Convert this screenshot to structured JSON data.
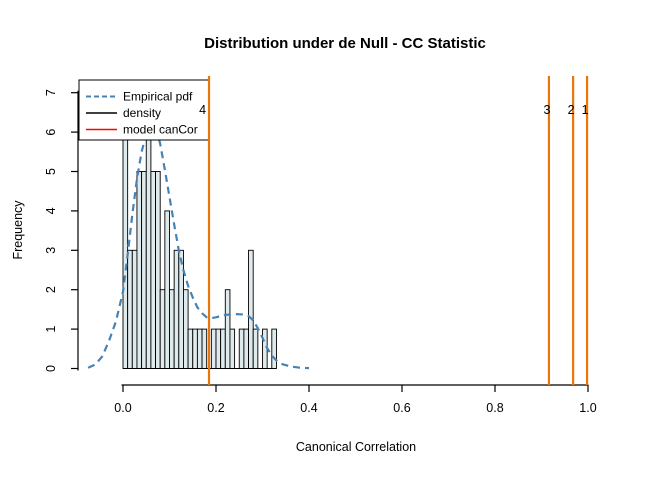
{
  "title": "Distribution under de Null - CC Statistic",
  "legend": {
    "items": [
      {
        "label": "Empirical pdf",
        "color": "#4682B4",
        "line_style": "dashed"
      },
      {
        "label": "density",
        "color": "#000000",
        "line_style": "solid"
      },
      {
        "label": "model canCor",
        "color": "#FF0000",
        "line_style": "solid"
      }
    ]
  },
  "chart_data": {
    "type": "histogram+line",
    "title": "Distribution under de Null - CC Statistic",
    "xlabel": "Canonical Correlation",
    "ylabel": "Frequency",
    "xlim": [
      -0.097,
      1.127
    ],
    "ylim": [
      0,
      7.3
    ],
    "grid": false,
    "legend_position": "top-left",
    "x_ticks": [
      "0.0",
      "0.2",
      "0.4",
      "0.6",
      "0.8",
      "1.0"
    ],
    "y_ticks": [
      "0",
      "1",
      "2",
      "3",
      "4",
      "5",
      "6",
      "7"
    ],
    "histogram": {
      "bin_start": 0.0,
      "bin_width": 0.01,
      "counts": [
        6,
        3,
        3,
        5,
        5,
        7,
        5,
        5,
        2,
        4,
        2,
        3,
        3,
        2,
        1,
        1,
        1,
        1,
        0,
        1,
        1,
        1,
        2,
        1,
        0,
        1,
        1,
        3,
        1,
        0,
        1,
        0,
        1
      ],
      "bar_fill": "#DEEAEC",
      "bar_stroke": "#000000"
    },
    "density_curve": {
      "name": "Empirical pdf",
      "color": "#4682B4",
      "style": "dashed",
      "x": [
        -0.075,
        -0.06,
        -0.045,
        -0.03,
        -0.015,
        0,
        0.01,
        0.02,
        0.03,
        0.04,
        0.05,
        0.06,
        0.07,
        0.08,
        0.09,
        0.1,
        0.11,
        0.12,
        0.13,
        0.14,
        0.15,
        0.16,
        0.17,
        0.18,
        0.19,
        0.2,
        0.22,
        0.24,
        0.26,
        0.27,
        0.28,
        0.29,
        0.3,
        0.31,
        0.32,
        0.33,
        0.34,
        0.36,
        0.38,
        0.4
      ],
      "y": [
        0.02,
        0.1,
        0.3,
        0.7,
        1.2,
        1.95,
        2.9,
        3.9,
        4.8,
        5.5,
        5.95,
        6.2,
        6.15,
        5.7,
        5.05,
        4.35,
        3.65,
        3.0,
        2.5,
        2.1,
        1.8,
        1.55,
        1.4,
        1.3,
        1.28,
        1.3,
        1.36,
        1.38,
        1.37,
        1.33,
        1.22,
        1.02,
        0.78,
        0.52,
        0.33,
        0.2,
        0.12,
        0.05,
        0.02,
        0.01
      ]
    },
    "vlines": [
      {
        "x": 0.185,
        "label": "4",
        "color": "#E8760C"
      },
      {
        "x": 0.916,
        "label": "3",
        "color": "#E8760C"
      },
      {
        "x": 0.968,
        "label": "2",
        "color": "#E8760C"
      },
      {
        "x": 0.998,
        "label": "1",
        "color": "#E8760C"
      }
    ]
  },
  "colors": {
    "accent_orange": "#E8760C",
    "curve_blue": "#4682B4",
    "model_red": "#FF0000",
    "bar_fill": "#DEEAEC"
  }
}
